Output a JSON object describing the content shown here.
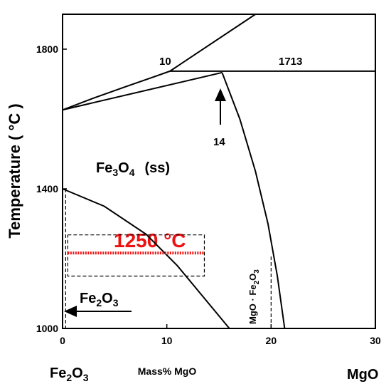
{
  "chart_data": {
    "type": "phase",
    "x_label": "Mass% MgO",
    "y_label": "Temperature ( °C )",
    "left_component": [
      "Fe",
      "2",
      "O",
      "3"
    ],
    "right_component": "MgO",
    "xlim": [
      0,
      30
    ],
    "ylim": [
      1000,
      1900
    ],
    "xticks": [
      0,
      10,
      20,
      30
    ],
    "yticks": [
      1000,
      1400,
      1800
    ],
    "annotations": {
      "eutectic": "10",
      "melting": "1713",
      "peritectic": "14",
      "spinel_ss": [
        "Fe",
        "3",
        "O",
        "4",
        "(ss)"
      ],
      "temperature": "1250 °C",
      "hematite": [
        "Fe",
        "2",
        "O",
        "3"
      ],
      "mgfe": [
        "MgO · Fe",
        "2",
        "O",
        "3"
      ]
    },
    "series": [
      {
        "color": "#000000",
        "x": [
          0,
          3,
          6,
          8.5,
          10.3
        ],
        "y": [
          1626,
          1660,
          1692,
          1718,
          1737
        ]
      },
      {
        "color": "#000000",
        "x": [
          10.3,
          18.5
        ],
        "y": [
          1737,
          1900
        ]
      },
      {
        "color": "#000000",
        "x": [
          10.3,
          30
        ],
        "y": [
          1737,
          1737
        ]
      },
      {
        "color": "#000000",
        "x": [
          0,
          15.3
        ],
        "y": [
          1626,
          1733
        ]
      },
      {
        "color": "#000000",
        "x": [
          15.3,
          17,
          18.5,
          19.7,
          20.6,
          21.3
        ],
        "y": [
          1733,
          1600,
          1450,
          1300,
          1150,
          1000
        ]
      },
      {
        "color": "#000000",
        "x": [
          0,
          4,
          8,
          11,
          13.5,
          16
        ],
        "y": [
          1400,
          1350,
          1270,
          1180,
          1090,
          1000
        ]
      },
      {
        "color": "#000000",
        "dash": true,
        "x": [
          20,
          20
        ],
        "y": [
          1000,
          1210
        ]
      },
      {
        "color": "#000000",
        "dash": true,
        "x": [
          0.5,
          13.6,
          13.6,
          0.5,
          0.5
        ],
        "y": [
          1268,
          1268,
          1150,
          1150,
          1268
        ]
      },
      {
        "color": "#000000",
        "dash": true,
        "x": [
          0.3,
          0.3
        ],
        "y": [
          1400,
          1000
        ]
      },
      {
        "color": "#ee1111",
        "dot": true,
        "x": [
          0.5,
          13.6
        ],
        "y": [
          1216,
          1216
        ]
      }
    ]
  }
}
